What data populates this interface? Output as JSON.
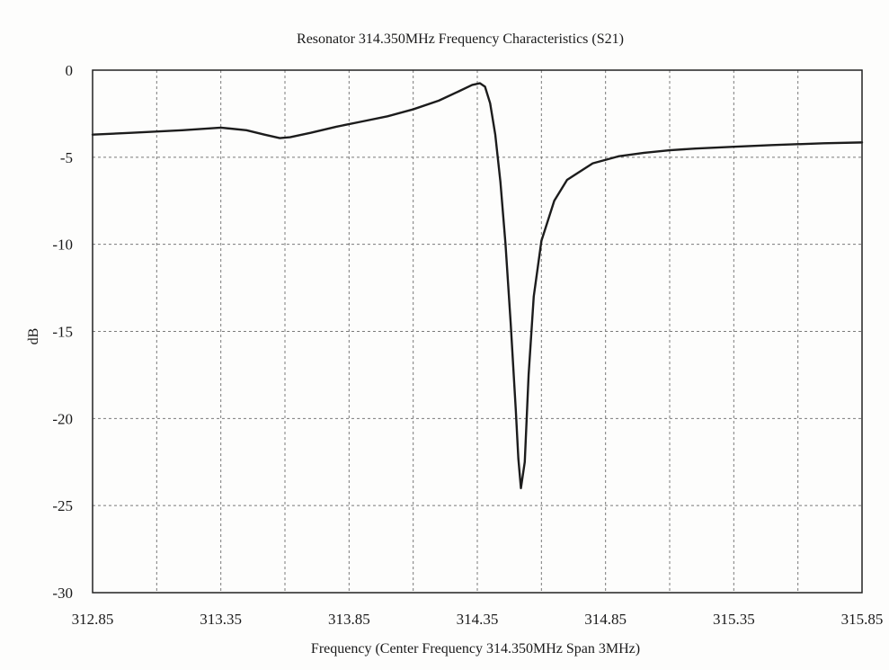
{
  "chart_data": {
    "type": "line",
    "title": "Resonator 314.350MHz Frequency Characteristics (S21)",
    "xlabel": "Frequency (Center Frequency 314.350MHz Span 3MHz)",
    "ylabel": "dB",
    "xlim": [
      312.85,
      315.85
    ],
    "ylim": [
      -30,
      0
    ],
    "xticks": [
      312.85,
      313.1,
      313.35,
      313.6,
      313.85,
      314.1,
      314.35,
      314.6,
      314.85,
      315.1,
      315.35,
      315.6,
      315.85
    ],
    "xtick_labels": [
      "312.85",
      "",
      "313.35",
      "",
      "313.85",
      "",
      "314.35",
      "",
      "314.85",
      "",
      "315.35",
      "",
      "315.85"
    ],
    "yticks": [
      0,
      -5,
      -10,
      -15,
      -20,
      -25,
      -30
    ],
    "ytick_labels": [
      "0",
      "-5",
      "-10",
      "-15",
      "-20",
      "-25",
      "-30"
    ],
    "grid": true,
    "legend": "none",
    "line_color": "#1c1c1c",
    "series": [
      {
        "x": [
          312.85,
          313.0,
          313.2,
          313.35,
          313.45,
          313.52,
          313.58,
          313.62,
          313.7,
          313.8,
          313.9,
          314.0,
          314.1,
          314.2,
          314.28,
          314.33,
          314.36,
          314.38,
          314.4,
          314.42,
          314.44,
          314.46,
          314.48,
          314.5,
          314.51,
          314.52,
          314.535,
          314.55,
          314.57,
          314.6,
          314.65,
          314.7,
          314.8,
          314.9,
          315.0,
          315.1,
          315.2,
          315.35,
          315.5,
          315.7,
          315.85
        ],
        "y": [
          -3.7,
          -3.6,
          -3.45,
          -3.3,
          -3.45,
          -3.7,
          -3.9,
          -3.85,
          -3.6,
          -3.25,
          -2.95,
          -2.65,
          -2.25,
          -1.75,
          -1.2,
          -0.85,
          -0.75,
          -0.95,
          -1.9,
          -3.7,
          -6.4,
          -10.0,
          -14.5,
          -19.5,
          -22.3,
          -24.0,
          -22.5,
          -17.5,
          -13.0,
          -9.8,
          -7.5,
          -6.3,
          -5.35,
          -4.95,
          -4.75,
          -4.6,
          -4.5,
          -4.4,
          -4.3,
          -4.2,
          -4.15
        ]
      }
    ]
  }
}
